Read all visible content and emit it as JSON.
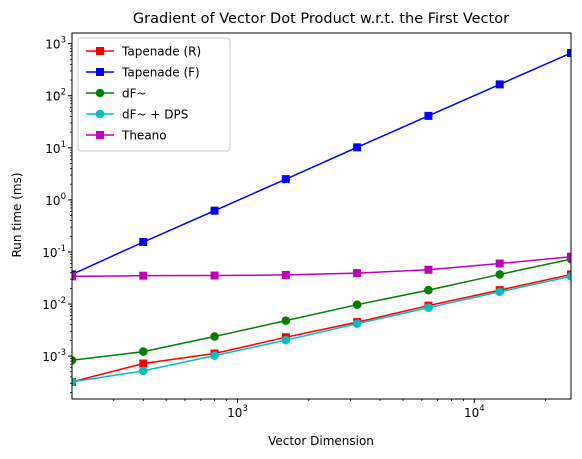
{
  "chart_data": {
    "type": "line",
    "title": "Gradient of Vector Dot Product w.r.t. the First Vector",
    "xlabel": "Vector Dimension",
    "ylabel": "Run time (ms)",
    "xscale": "log",
    "yscale": "log",
    "xlim": [
      200,
      25600
    ],
    "ylim": [
      0.00015,
      1600
    ],
    "grid": false,
    "legend_position": "top-left",
    "x_ticks": [
      {
        "base": "10",
        "exp": "3",
        "value": 1000
      },
      {
        "base": "10",
        "exp": "4",
        "value": 10000
      }
    ],
    "y_ticks": [
      {
        "base": "10",
        "exp": "-3",
        "value": 0.001
      },
      {
        "base": "10",
        "exp": "-2",
        "value": 0.01
      },
      {
        "base": "10",
        "exp": "-1",
        "value": 0.1
      },
      {
        "base": "10",
        "exp": "0",
        "value": 1
      },
      {
        "base": "10",
        "exp": "1",
        "value": 10
      },
      {
        "base": "10",
        "exp": "2",
        "value": 100
      },
      {
        "base": "10",
        "exp": "3",
        "value": 1000
      }
    ],
    "x": [
      200,
      400,
      800,
      1600,
      3200,
      6400,
      12800,
      25600
    ],
    "series": [
      {
        "name": "Tapenade (R)",
        "color": "#ff0000",
        "marker": "square",
        "values": [
          0.00032,
          0.00072,
          0.00112,
          0.0023,
          0.0045,
          0.0093,
          0.0185,
          0.037
        ]
      },
      {
        "name": "Tapenade (F)",
        "color": "#0000ff",
        "marker": "square",
        "values": [
          0.037,
          0.155,
          0.62,
          2.5,
          10.2,
          41,
          165,
          660
        ]
      },
      {
        "name": "dF~",
        "color": "#008000",
        "marker": "circle",
        "values": [
          0.00083,
          0.00122,
          0.00238,
          0.0048,
          0.0097,
          0.0185,
          0.037,
          0.073
        ]
      },
      {
        "name": "dF~ + DPS",
        "color": "#00bfbf",
        "marker": "circle",
        "values": [
          0.00032,
          0.00052,
          0.00102,
          0.00202,
          0.0042,
          0.0085,
          0.0172,
          0.034
        ]
      },
      {
        "name": "Theano",
        "color": "#bf00bf",
        "marker": "square",
        "values": [
          0.034,
          0.035,
          0.0352,
          0.0362,
          0.0392,
          0.0455,
          0.06,
          0.081
        ]
      }
    ]
  }
}
